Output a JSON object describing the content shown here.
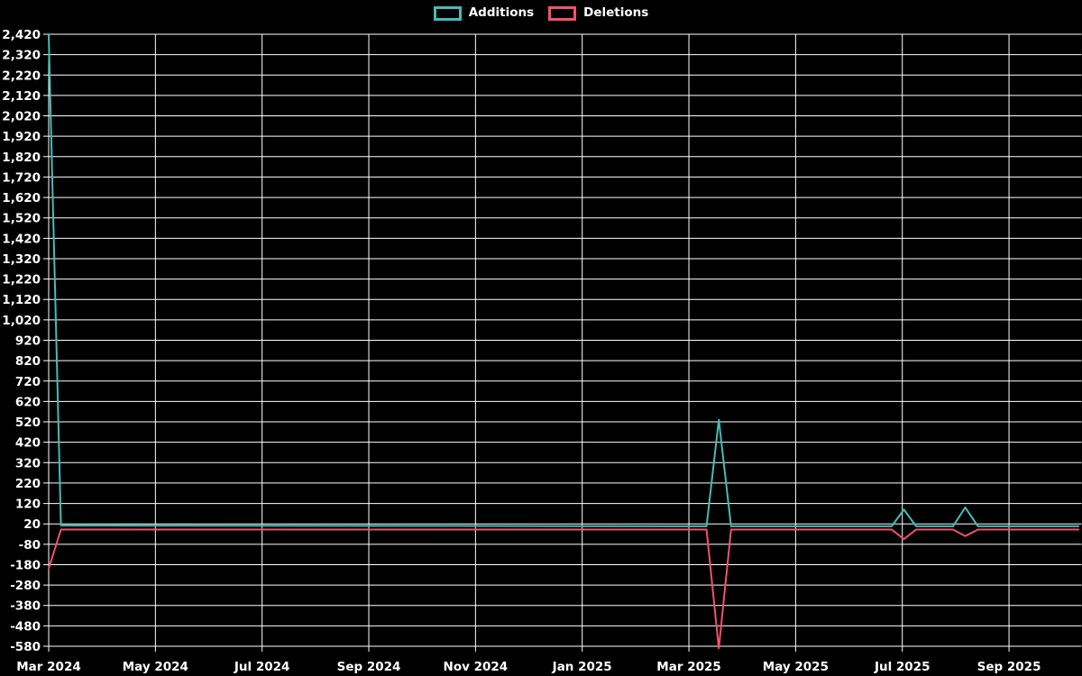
{
  "legend": {
    "items": [
      {
        "label": "Additions",
        "color": "#43bdb9"
      },
      {
        "label": "Deletions",
        "color": "#f4516c"
      }
    ]
  },
  "chart_data": {
    "type": "line",
    "title": "",
    "background_color": "#000000",
    "grid_color": "#ffffff",
    "text_color": "#ffffff",
    "x_axis": {
      "unit": "months since Mar 2024",
      "tick_labels": [
        "Mar 2024",
        "May 2024",
        "Jul 2024",
        "Sep 2024",
        "Nov 2024",
        "Jan 2025",
        "Mar 2025",
        "May 2025",
        "Jul 2025",
        "Sep 2025"
      ],
      "tick_positions": [
        0,
        2,
        4,
        6,
        8,
        10,
        12,
        14,
        16,
        18
      ],
      "range": [
        0,
        19.36
      ],
      "grid": true
    },
    "y_axis": {
      "min": -580,
      "max": 2420,
      "step": 100,
      "tick_format": "comma",
      "grid": true
    },
    "series": [
      {
        "name": "Additions",
        "color": "#43bdb9",
        "points": [
          [
            0,
            2420
          ],
          [
            0.23,
            12
          ],
          [
            12.33,
            8
          ],
          [
            12.56,
            530
          ],
          [
            12.79,
            8
          ],
          [
            15.8,
            8
          ],
          [
            16.03,
            90
          ],
          [
            16.26,
            8
          ],
          [
            16.95,
            8
          ],
          [
            17.18,
            100
          ],
          [
            17.42,
            8
          ],
          [
            19.3,
            8
          ]
        ]
      },
      {
        "name": "Deletions",
        "color": "#f4516c",
        "points": [
          [
            0,
            -200
          ],
          [
            0.23,
            -8
          ],
          [
            12.33,
            -8
          ],
          [
            12.56,
            -590
          ],
          [
            12.79,
            -8
          ],
          [
            15.8,
            -8
          ],
          [
            16.03,
            -55
          ],
          [
            16.26,
            -8
          ],
          [
            16.95,
            -8
          ],
          [
            17.18,
            -40
          ],
          [
            17.42,
            -8
          ],
          [
            19.3,
            -8
          ]
        ]
      }
    ],
    "notable_values": {
      "first_week_additions": 2420,
      "first_week_deletions": -200,
      "mar_2025_spike_additions": 530,
      "mar_2025_spike_deletions": -590,
      "jul_2025_bump_additions": 90,
      "jul_2025_bump_deletions": -55,
      "aug_2025_bump_additions": 100,
      "aug_2025_bump_deletions": -40
    }
  }
}
